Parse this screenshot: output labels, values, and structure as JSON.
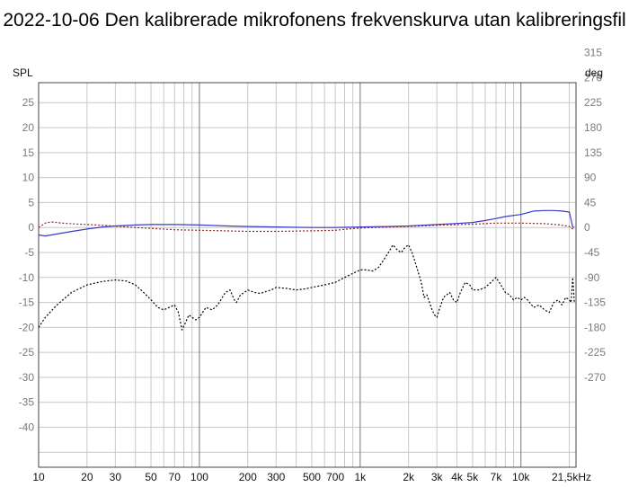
{
  "chart_data": {
    "type": "line",
    "title": "2022-10-06 Den kalibrerade mikrofonens frekvenskurva utan kalibreringsfil",
    "left_axis_label": "SPL",
    "right_axis_label": "deg",
    "x_scale": "log",
    "xlim": [
      10,
      22000
    ],
    "ylim": [
      -48,
      29
    ],
    "y2lim": [
      -432,
      261
    ],
    "grid": true,
    "x_ticks": [
      {
        "v": 10,
        "t": "10"
      },
      {
        "v": 20,
        "t": "20"
      },
      {
        "v": 30,
        "t": "30"
      },
      {
        "v": 50,
        "t": "50"
      },
      {
        "v": 70,
        "t": "70"
      },
      {
        "v": 100,
        "t": "100"
      },
      {
        "v": 200,
        "t": "200"
      },
      {
        "v": 300,
        "t": "300"
      },
      {
        "v": 500,
        "t": "500"
      },
      {
        "v": 700,
        "t": "700"
      },
      {
        "v": 1000,
        "t": "1k"
      },
      {
        "v": 2000,
        "t": "2k"
      },
      {
        "v": 3000,
        "t": "3k"
      },
      {
        "v": 4000,
        "t": "4k"
      },
      {
        "v": 5000,
        "t": "5k"
      },
      {
        "v": 7000,
        "t": "7k"
      },
      {
        "v": 10000,
        "t": "10k"
      },
      {
        "v": 21500,
        "t": "21,5kHz"
      }
    ],
    "y_ticks": [
      25,
      20,
      15,
      10,
      5,
      0,
      -5,
      -10,
      -15,
      -20,
      -25,
      -30,
      -35,
      -40
    ],
    "y2_ticks": [
      315,
      270,
      225,
      180,
      135,
      90,
      45,
      0,
      -45,
      -90,
      -135,
      -180,
      -225,
      -270
    ],
    "series": [
      {
        "color": "#3a3acc",
        "style": "solid",
        "axis": "left",
        "points": [
          [
            10,
            -1.5
          ],
          [
            11,
            -1.7
          ],
          [
            13,
            -1.3
          ],
          [
            16,
            -0.8
          ],
          [
            20,
            -0.3
          ],
          [
            25,
            0.1
          ],
          [
            30,
            0.3
          ],
          [
            40,
            0.5
          ],
          [
            50,
            0.6
          ],
          [
            70,
            0.6
          ],
          [
            100,
            0.5
          ],
          [
            150,
            0.3
          ],
          [
            200,
            0.2
          ],
          [
            300,
            0.1
          ],
          [
            500,
            0.0
          ],
          [
            700,
            0.0
          ],
          [
            1000,
            0.1
          ],
          [
            1500,
            0.2
          ],
          [
            2000,
            0.3
          ],
          [
            3000,
            0.6
          ],
          [
            4000,
            0.8
          ],
          [
            5000,
            1.0
          ],
          [
            6000,
            1.4
          ],
          [
            7000,
            1.8
          ],
          [
            8000,
            2.2
          ],
          [
            10000,
            2.6
          ],
          [
            12000,
            3.3
          ],
          [
            14000,
            3.4
          ],
          [
            16000,
            3.4
          ],
          [
            18000,
            3.3
          ],
          [
            20000,
            3.1
          ],
          [
            21000,
            0.1
          ],
          [
            21500,
            0.0
          ]
        ]
      },
      {
        "color": "#8b2525",
        "style": "dotted",
        "axis": "right",
        "points": [
          [
            10,
            0
          ],
          [
            11,
            8
          ],
          [
            12,
            10
          ],
          [
            14,
            8
          ],
          [
            18,
            6
          ],
          [
            25,
            4
          ],
          [
            40,
            0
          ],
          [
            70,
            -4
          ],
          [
            100,
            -5
          ],
          [
            200,
            -7
          ],
          [
            300,
            -7
          ],
          [
            500,
            -6
          ],
          [
            700,
            -5
          ],
          [
            900,
            -2
          ],
          [
            1000,
            -1
          ],
          [
            1200,
            0
          ],
          [
            1500,
            1
          ],
          [
            2000,
            2
          ],
          [
            3000,
            4
          ],
          [
            5000,
            6
          ],
          [
            7000,
            8
          ],
          [
            10000,
            8
          ],
          [
            14000,
            7
          ],
          [
            17000,
            5
          ],
          [
            20000,
            2
          ],
          [
            21500,
            -5
          ]
        ]
      },
      {
        "color": "#000000",
        "style": "dotted",
        "axis": "left",
        "points": [
          [
            10,
            -20
          ],
          [
            11,
            -18
          ],
          [
            13,
            -15.5
          ],
          [
            16,
            -13
          ],
          [
            20,
            -11.5
          ],
          [
            25,
            -10.8
          ],
          [
            30,
            -10.5
          ],
          [
            35,
            -10.7
          ],
          [
            40,
            -11.5
          ],
          [
            45,
            -13
          ],
          [
            50,
            -14.5
          ],
          [
            55,
            -16
          ],
          [
            60,
            -16.5
          ],
          [
            65,
            -16
          ],
          [
            70,
            -15.5
          ],
          [
            74,
            -17
          ],
          [
            78,
            -20.5
          ],
          [
            82,
            -19
          ],
          [
            86,
            -17.5
          ],
          [
            90,
            -18
          ],
          [
            95,
            -18.5
          ],
          [
            100,
            -18
          ],
          [
            110,
            -16
          ],
          [
            120,
            -16.5
          ],
          [
            130,
            -15.5
          ],
          [
            145,
            -13
          ],
          [
            155,
            -12.5
          ],
          [
            165,
            -14.5
          ],
          [
            170,
            -15
          ],
          [
            180,
            -13.5
          ],
          [
            190,
            -13
          ],
          [
            200,
            -12.5
          ],
          [
            220,
            -13
          ],
          [
            240,
            -13.2
          ],
          [
            260,
            -12.8
          ],
          [
            280,
            -12.5
          ],
          [
            300,
            -12
          ],
          [
            350,
            -12.2
          ],
          [
            400,
            -12.5
          ],
          [
            450,
            -12.3
          ],
          [
            500,
            -12
          ],
          [
            600,
            -11.5
          ],
          [
            700,
            -11
          ],
          [
            800,
            -10
          ],
          [
            900,
            -9.2
          ],
          [
            1000,
            -8.5
          ],
          [
            1100,
            -8.5
          ],
          [
            1200,
            -8.7
          ],
          [
            1300,
            -8
          ],
          [
            1400,
            -6.5
          ],
          [
            1500,
            -5
          ],
          [
            1600,
            -3.5
          ],
          [
            1700,
            -4.5
          ],
          [
            1800,
            -5
          ],
          [
            1900,
            -4
          ],
          [
            2000,
            -3.5
          ],
          [
            2100,
            -5
          ],
          [
            2200,
            -7
          ],
          [
            2300,
            -9
          ],
          [
            2400,
            -11
          ],
          [
            2500,
            -14
          ],
          [
            2600,
            -13.5
          ],
          [
            2700,
            -15
          ],
          [
            2800,
            -16.5
          ],
          [
            2900,
            -17.5
          ],
          [
            3000,
            -18
          ],
          [
            3100,
            -16.5
          ],
          [
            3300,
            -14
          ],
          [
            3600,
            -13
          ],
          [
            3800,
            -14.5
          ],
          [
            4000,
            -15
          ],
          [
            4200,
            -13
          ],
          [
            4500,
            -11
          ],
          [
            4800,
            -11.5
          ],
          [
            5000,
            -12.5
          ],
          [
            5500,
            -12.5
          ],
          [
            6000,
            -12
          ],
          [
            6500,
            -11
          ],
          [
            7000,
            -10
          ],
          [
            7500,
            -11.5
          ],
          [
            8000,
            -13
          ],
          [
            8500,
            -13.5
          ],
          [
            9000,
            -14.5
          ],
          [
            9500,
            -14
          ],
          [
            10000,
            -14.5
          ],
          [
            10500,
            -14
          ],
          [
            11000,
            -14.5
          ],
          [
            12000,
            -16
          ],
          [
            13000,
            -15.5
          ],
          [
            14000,
            -16.5
          ],
          [
            15000,
            -17
          ],
          [
            16000,
            -15
          ],
          [
            17000,
            -14.5
          ],
          [
            18000,
            -15.5
          ],
          [
            19000,
            -14
          ],
          [
            20000,
            -14.5
          ],
          [
            20500,
            -15
          ],
          [
            21000,
            -10
          ],
          [
            21300,
            -13
          ],
          [
            21500,
            -15
          ]
        ]
      }
    ]
  }
}
